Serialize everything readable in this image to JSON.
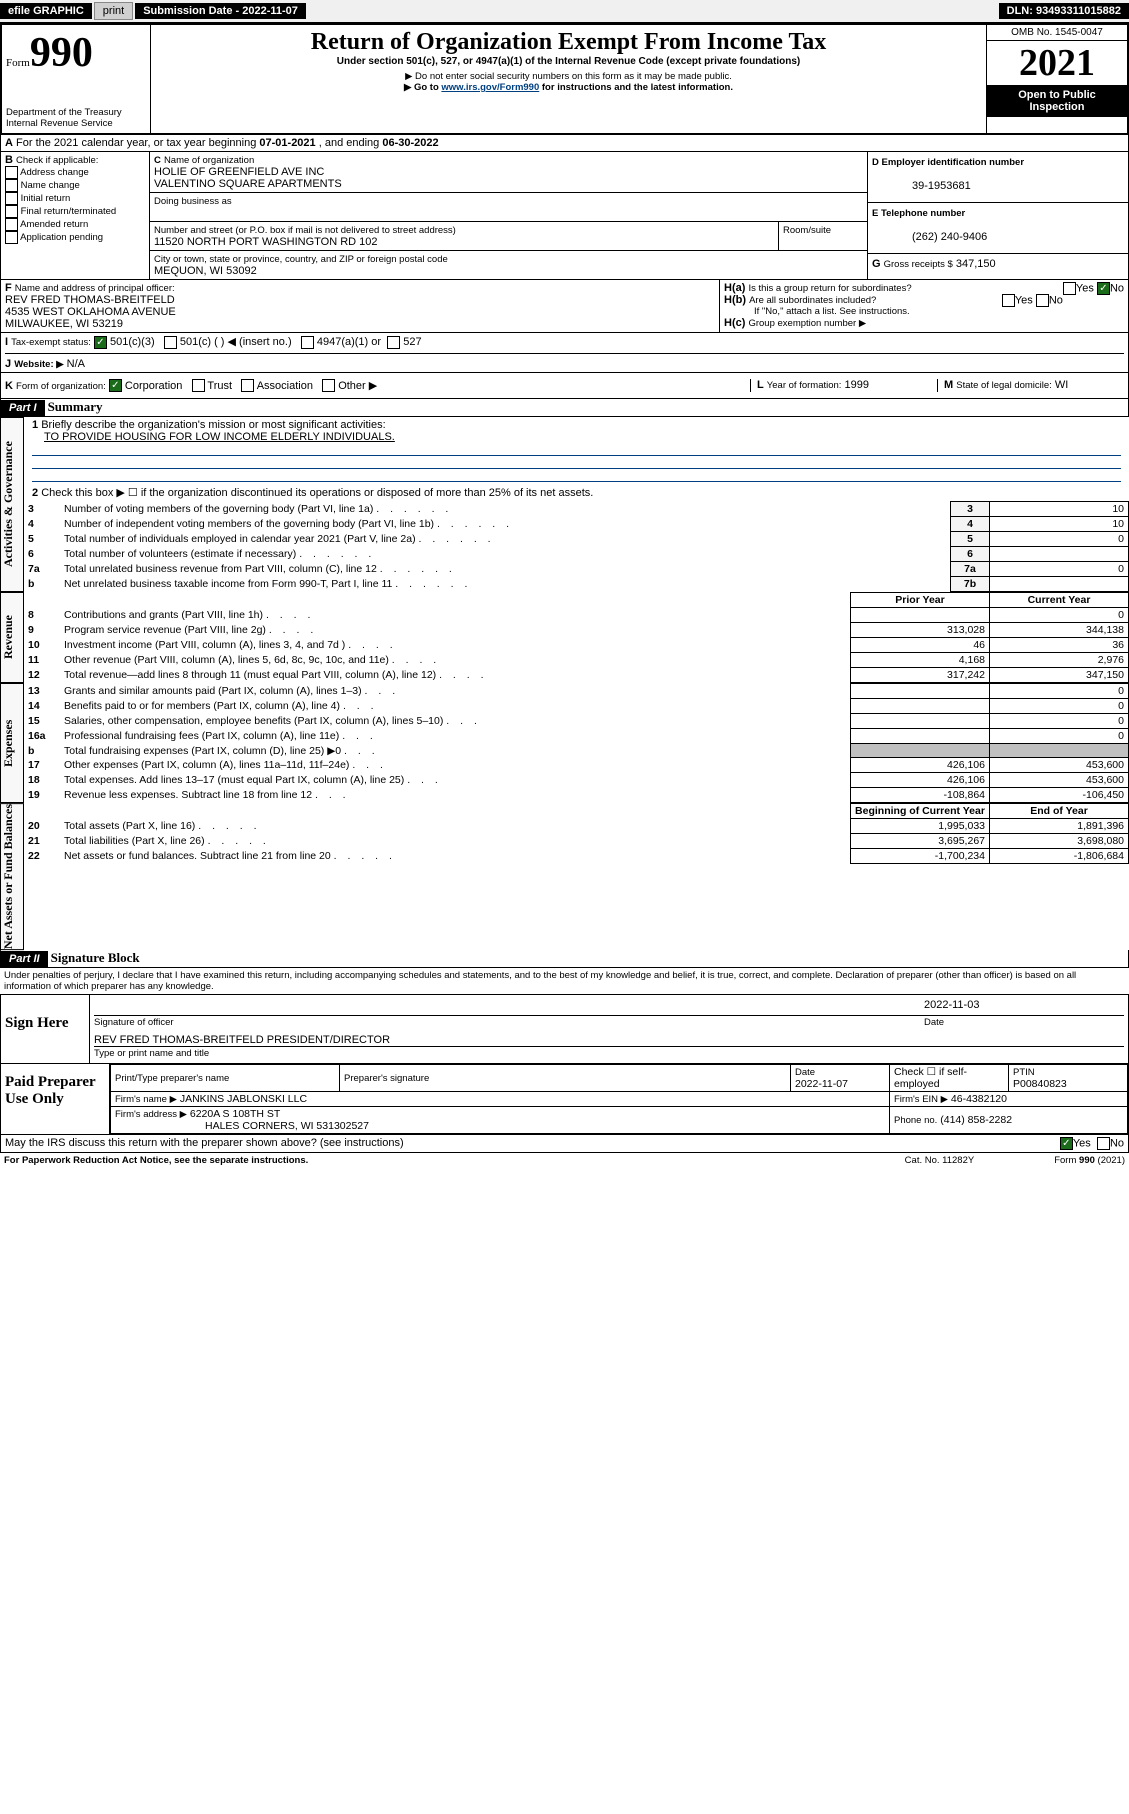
{
  "topbar": {
    "efile": "efile GRAPHIC",
    "print": "print",
    "sub_label": "Submission Date - 2022-11-07",
    "dln": "DLN: 93493311015882"
  },
  "header": {
    "form_label": "Form",
    "form_number": "990",
    "dept": "Department of the Treasury",
    "irs": "Internal Revenue Service",
    "title": "Return of Organization Exempt From Income Tax",
    "sub1": "Under section 501(c), 527, or 4947(a)(1) of the Internal Revenue Code (except private foundations)",
    "sub2": "▶ Do not enter social security numbers on this form as it may be made public.",
    "sub3_a": "▶ Go to ",
    "sub3_link": "www.irs.gov/Form990",
    "sub3_b": " for instructions and the latest information.",
    "omb": "OMB No. 1545-0047",
    "year": "2021",
    "open": "Open to Public Inspection"
  },
  "period": {
    "a_label": "A",
    "text_a": "For the 2021 calendar year, or tax year beginning ",
    "begin": "07-01-2021",
    "text_b": " , and ending ",
    "end": "06-30-2022"
  },
  "boxB": {
    "label": "B",
    "text": "Check if applicable:",
    "opts": [
      "Address change",
      "Name change",
      "Initial return",
      "Final return/terminated",
      "Amended return",
      "Application pending"
    ]
  },
  "boxC": {
    "c_label": "C",
    "name_label": "Name of organization",
    "name1": "HOLIE OF GREENFIELD AVE INC",
    "name2": "VALENTINO SQUARE APARTMENTS",
    "dba_label": "Doing business as",
    "street_label": "Number and street (or P.O. box if mail is not delivered to street address)",
    "room_label": "Room/suite",
    "street": "11520 NORTH PORT WASHINGTON RD 102",
    "city_label": "City or town, state or province, country, and ZIP or foreign postal code",
    "city": "MEQUON, WI  53092"
  },
  "boxD": {
    "label": "D Employer identification number",
    "ein": "39-1953681"
  },
  "boxE": {
    "label": "E Telephone number",
    "phone": "(262) 240-9406"
  },
  "boxG": {
    "label": "G",
    "text": "Gross receipts $",
    "val": "347,150"
  },
  "boxF": {
    "label": "F",
    "text": "Name and address of principal officer:",
    "name": "REV FRED THOMAS-BREITFELD",
    "addr": "4535 WEST OKLAHOMA AVENUE",
    "city": "MILWAUKEE, WI  53219"
  },
  "boxH": {
    "a_label": "H(a)",
    "a_text": "Is this a group return for subordinates?",
    "b_label": "H(b)",
    "b_text": "Are all subordinates included?",
    "b_note": "If \"No,\" attach a list. See instructions.",
    "c_label": "H(c)",
    "c_text": "Group exemption number ▶",
    "yes": "Yes",
    "no": "No"
  },
  "boxI": {
    "label": "I",
    "text": "Tax-exempt status:",
    "opt1": "501(c)(3)",
    "opt2": "501(c) (    ) ◀ (insert no.)",
    "opt3": "4947(a)(1) or",
    "opt4": "527"
  },
  "boxJ": {
    "label": "J",
    "text": "Website: ▶",
    "val": "N/A"
  },
  "boxK": {
    "label": "K",
    "text": "Form of organization:",
    "opts": [
      "Corporation",
      "Trust",
      "Association",
      "Other ▶"
    ]
  },
  "boxL": {
    "label": "L",
    "text": "Year of formation:",
    "val": "1999"
  },
  "boxM": {
    "label": "M",
    "text": "State of legal domicile:",
    "val": "WI"
  },
  "part1": {
    "header": "Part I",
    "title": "Summary",
    "line1_label": "1",
    "line1_text": "Briefly describe the organization's mission or most significant activities:",
    "line1_val": "TO PROVIDE HOUSING FOR LOW INCOME ELDERLY INDIVIDUALS.",
    "line2_label": "2",
    "line2_text": "Check this box ▶ ☐ if the organization discontinued its operations or disposed of more than 25% of its net assets.",
    "rows_ag": [
      {
        "n": "3",
        "desc": "Number of voting members of the governing body (Part VI, line 1a)",
        "box": "3",
        "val": "10"
      },
      {
        "n": "4",
        "desc": "Number of independent voting members of the governing body (Part VI, line 1b)",
        "box": "4",
        "val": "10"
      },
      {
        "n": "5",
        "desc": "Total number of individuals employed in calendar year 2021 (Part V, line 2a)",
        "box": "5",
        "val": "0"
      },
      {
        "n": "6",
        "desc": "Total number of volunteers (estimate if necessary)",
        "box": "6",
        "val": ""
      },
      {
        "n": "7a",
        "desc": "Total unrelated business revenue from Part VIII, column (C), line 12",
        "box": "7a",
        "val": "0"
      },
      {
        "n": "b",
        "desc": "Net unrelated business taxable income from Form 990-T, Part I, line 11",
        "box": "7b",
        "val": ""
      }
    ],
    "col_prior": "Prior Year",
    "col_current": "Current Year",
    "rows_rev": [
      {
        "n": "8",
        "desc": "Contributions and grants (Part VIII, line 1h)",
        "prior": "",
        "curr": "0"
      },
      {
        "n": "9",
        "desc": "Program service revenue (Part VIII, line 2g)",
        "prior": "313,028",
        "curr": "344,138"
      },
      {
        "n": "10",
        "desc": "Investment income (Part VIII, column (A), lines 3, 4, and 7d )",
        "prior": "46",
        "curr": "36"
      },
      {
        "n": "11",
        "desc": "Other revenue (Part VIII, column (A), lines 5, 6d, 8c, 9c, 10c, and 11e)",
        "prior": "4,168",
        "curr": "2,976"
      },
      {
        "n": "12",
        "desc": "Total revenue—add lines 8 through 11 (must equal Part VIII, column (A), line 12)",
        "prior": "317,242",
        "curr": "347,150"
      }
    ],
    "rows_exp": [
      {
        "n": "13",
        "desc": "Grants and similar amounts paid (Part IX, column (A), lines 1–3)",
        "prior": "",
        "curr": "0"
      },
      {
        "n": "14",
        "desc": "Benefits paid to or for members (Part IX, column (A), line 4)",
        "prior": "",
        "curr": "0"
      },
      {
        "n": "15",
        "desc": "Salaries, other compensation, employee benefits (Part IX, column (A), lines 5–10)",
        "prior": "",
        "curr": "0"
      },
      {
        "n": "16a",
        "desc": "Professional fundraising fees (Part IX, column (A), line 11e)",
        "prior": "",
        "curr": "0"
      },
      {
        "n": "b",
        "desc": "Total fundraising expenses (Part IX, column (D), line 25) ▶0",
        "prior": "SHADE",
        "curr": "SHADE"
      },
      {
        "n": "17",
        "desc": "Other expenses (Part IX, column (A), lines 11a–11d, 11f–24e)",
        "prior": "426,106",
        "curr": "453,600"
      },
      {
        "n": "18",
        "desc": "Total expenses. Add lines 13–17 (must equal Part IX, column (A), line 25)",
        "prior": "426,106",
        "curr": "453,600"
      },
      {
        "n": "19",
        "desc": "Revenue less expenses. Subtract line 18 from line 12",
        "prior": "-108,864",
        "curr": "-106,450"
      }
    ],
    "col_begin": "Beginning of Current Year",
    "col_end": "End of Year",
    "rows_net": [
      {
        "n": "20",
        "desc": "Total assets (Part X, line 16)",
        "prior": "1,995,033",
        "curr": "1,891,396"
      },
      {
        "n": "21",
        "desc": "Total liabilities (Part X, line 26)",
        "prior": "3,695,267",
        "curr": "3,698,080"
      },
      {
        "n": "22",
        "desc": "Net assets or fund balances. Subtract line 21 from line 20",
        "prior": "-1,700,234",
        "curr": "-1,806,684"
      }
    ],
    "side_ag": "Activities & Governance",
    "side_rev": "Revenue",
    "side_exp": "Expenses",
    "side_net": "Net Assets or Fund Balances"
  },
  "part2": {
    "header": "Part II",
    "title": "Signature Block",
    "jurat": "Under penalties of perjury, I declare that I have examined this return, including accompanying schedules and statements, and to the best of my knowledge and belief, it is true, correct, and complete. Declaration of preparer (other than officer) is based on all information of which preparer has any knowledge.",
    "sign_here": "Sign Here",
    "sig_officer": "Signature of officer",
    "date_label": "Date",
    "sig_date": "2022-11-03",
    "officer_name": "REV FRED THOMAS-BREITFELD  PRESIDENT/DIRECTOR",
    "type_name": "Type or print name and title",
    "paid_prep": "Paid Preparer Use Only",
    "prep_name_label": "Print/Type preparer's name",
    "prep_sig_label": "Preparer's signature",
    "prep_date_label": "Date",
    "prep_date": "2022-11-07",
    "check_self": "Check ☐ if self-employed",
    "ptin_label": "PTIN",
    "ptin": "P00840823",
    "firm_name_label": "Firm's name    ▶",
    "firm_name": "JANKINS JABLONSKI LLC",
    "firm_ein_label": "Firm's EIN ▶",
    "firm_ein": "46-4382120",
    "firm_addr_label": "Firm's address ▶",
    "firm_addr1": "6220A S 108TH ST",
    "firm_addr2": "HALES CORNERS, WI  531302527",
    "phone_label": "Phone no.",
    "phone": "(414) 858-2282",
    "discuss": "May the IRS discuss this return with the preparer shown above? (see instructions)",
    "yes": "Yes",
    "no": "No"
  },
  "footer": {
    "left": "For Paperwork Reduction Act Notice, see the separate instructions.",
    "center": "Cat. No. 11282Y",
    "right": "Form 990 (2021)"
  }
}
